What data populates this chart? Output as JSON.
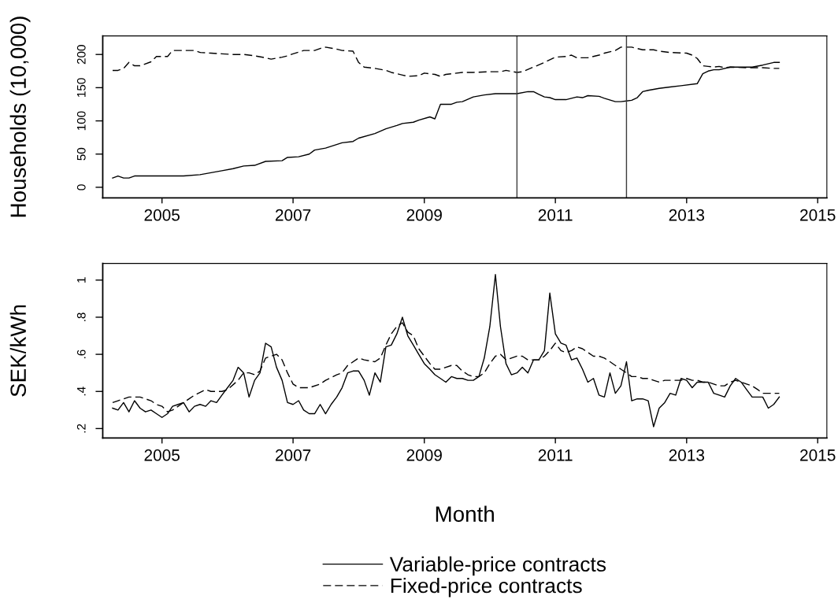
{
  "chart_data": [
    {
      "type": "line",
      "ylabel": "Households (10,000)",
      "xlim": [
        "2004-02-06",
        "2015-02-21"
      ],
      "xticks": [
        {
          "value": "2005-01",
          "label": "2005"
        },
        {
          "value": "2007-01",
          "label": "2007"
        },
        {
          "value": "2009-01",
          "label": "2009"
        },
        {
          "value": "2011-01",
          "label": "2011"
        },
        {
          "value": "2013-01",
          "label": "2013"
        },
        {
          "value": "2015-01",
          "label": "2015"
        }
      ],
      "ylim": [
        -16,
        228
      ],
      "yticks": [
        0,
        50,
        100,
        150,
        200
      ],
      "ref_lines": [
        {
          "axis": "x",
          "value": "2010-06",
          "color": "#3c3c3c"
        },
        {
          "axis": "x",
          "value": "2012-02",
          "color": "#3c3c3c"
        }
      ],
      "series": [
        {
          "color": "#000000",
          "line_style": "solid",
          "x": [
            "2004-04",
            "2004-05",
            "2004-06",
            "2004-07",
            "2004-08",
            "2005-05",
            "2005-08",
            "2005-10",
            "2005-12",
            "2006-02",
            "2006-04",
            "2006-06",
            "2006-08",
            "2006-11",
            "2006-12",
            "2007-02",
            "2007-04",
            "2007-05",
            "2007-07",
            "2007-10",
            "2007-12",
            "2008-01",
            "2008-04",
            "2008-06",
            "2008-08",
            "2008-09",
            "2008-11",
            "2008-12",
            "2009-02",
            "2009-03",
            "2009-04",
            "2009-06",
            "2009-07",
            "2009-08",
            "2009-10",
            "2009-12",
            "2010-02",
            "2010-06",
            "2010-08",
            "2010-09",
            "2010-10",
            "2010-11",
            "2010-12",
            "2011-01",
            "2011-03",
            "2011-05",
            "2011-06",
            "2011-07",
            "2011-09",
            "2011-10",
            "2011-12",
            "2012-01",
            "2012-02",
            "2012-03",
            "2012-04",
            "2012-05",
            "2012-06",
            "2012-08",
            "2012-10",
            "2012-12",
            "2013-03",
            "2013-04",
            "2013-05",
            "2013-06",
            "2013-07",
            "2013-09",
            "2013-10",
            "2014-01",
            "2014-03",
            "2014-05",
            "2014-06"
          ],
          "values": [
            14,
            17,
            14,
            14,
            17,
            17,
            19,
            22,
            25,
            28,
            32,
            33,
            39,
            40,
            45,
            46,
            50,
            56,
            59,
            67,
            69,
            74,
            81,
            88,
            93,
            96,
            98,
            101,
            106,
            103,
            125,
            125,
            128,
            129,
            136,
            139,
            141,
            141,
            144,
            144,
            140,
            136,
            135,
            132,
            132,
            136,
            135,
            138,
            137,
            134,
            129,
            129,
            130,
            131,
            135,
            144,
            146,
            149,
            151,
            153,
            156,
            171,
            175,
            177,
            177,
            181,
            181,
            181,
            184,
            188,
            188
          ]
        },
        {
          "color": "#000000",
          "line_style": "dashed",
          "x": [
            "2004-04",
            "2004-05",
            "2004-06",
            "2004-07",
            "2004-08",
            "2004-09",
            "2004-11",
            "2004-12",
            "2005-02",
            "2005-03",
            "2005-07",
            "2005-08",
            "2005-10",
            "2005-12",
            "2006-02",
            "2006-04",
            "2006-06",
            "2006-08",
            "2006-09",
            "2006-11",
            "2006-12",
            "2007-01",
            "2007-03",
            "2007-05",
            "2007-06",
            "2007-07",
            "2007-09",
            "2007-10",
            "2007-12",
            "2008-01",
            "2008-02",
            "2008-04",
            "2008-06",
            "2008-07",
            "2008-09",
            "2008-10",
            "2008-12",
            "2009-01",
            "2009-03",
            "2009-04",
            "2009-05",
            "2009-08",
            "2009-10",
            "2010-01",
            "2010-03",
            "2010-04",
            "2010-06",
            "2010-07",
            "2010-09",
            "2010-11",
            "2011-01",
            "2011-03",
            "2011-04",
            "2011-05",
            "2011-07",
            "2011-09",
            "2011-10",
            "2011-12",
            "2012-01",
            "2012-03",
            "2012-05",
            "2012-07",
            "2012-08",
            "2012-10",
            "2013-01",
            "2013-02",
            "2013-03",
            "2013-04",
            "2013-05",
            "2013-06",
            "2013-07",
            "2013-08",
            "2013-09",
            "2013-12",
            "2014-03",
            "2014-05",
            "2014-06"
          ],
          "values": [
            176,
            176,
            179,
            188,
            183,
            183,
            189,
            197,
            197,
            206,
            206,
            203,
            202,
            201,
            200,
            200,
            198,
            195,
            193,
            196,
            198,
            201,
            206,
            206,
            209,
            211,
            208,
            206,
            205,
            188,
            181,
            179,
            176,
            173,
            169,
            167,
            168,
            172,
            170,
            167,
            170,
            173,
            173,
            174,
            174,
            176,
            173,
            174,
            181,
            188,
            196,
            197,
            199,
            195,
            195,
            199,
            202,
            206,
            211,
            211,
            207,
            207,
            205,
            203,
            202,
            199,
            194,
            183,
            182,
            181,
            182,
            180,
            181,
            180,
            180,
            179,
            179
          ]
        }
      ]
    },
    {
      "type": "line",
      "ylabel": "SEK/kWh",
      "xlabel": "Month",
      "legend": "bottom",
      "xlim": [
        "2004-02-06",
        "2015-02-21"
      ],
      "xticks": [
        {
          "value": "2005-01",
          "label": "2005"
        },
        {
          "value": "2007-01",
          "label": "2007"
        },
        {
          "value": "2009-01",
          "label": "2009"
        },
        {
          "value": "2011-01",
          "label": "2011"
        },
        {
          "value": "2013-01",
          "label": "2013"
        },
        {
          "value": "2015-01",
          "label": "2015"
        }
      ],
      "ylim": [
        0.149,
        1.09
      ],
      "yticks": [
        {
          "value": 0.2,
          "label": ".2"
        },
        {
          "value": 0.4,
          "label": ".4"
        },
        {
          "value": 0.6,
          "label": ".6"
        },
        {
          "value": 0.8,
          "label": ".8"
        },
        1
      ],
      "x": [
        "2004-04",
        "2004-05",
        "2004-06",
        "2004-07",
        "2004-08",
        "2004-09",
        "2004-10",
        "2004-11",
        "2004-12",
        "2005-01",
        "2005-02",
        "2005-03",
        "2005-04",
        "2005-05",
        "2005-06",
        "2005-07",
        "2005-08",
        "2005-09",
        "2005-10",
        "2005-11",
        "2005-12",
        "2006-01",
        "2006-02",
        "2006-03",
        "2006-04",
        "2006-05",
        "2006-06",
        "2006-07",
        "2006-08",
        "2006-09",
        "2006-10",
        "2006-11",
        "2006-12",
        "2007-01",
        "2007-02",
        "2007-03",
        "2007-04",
        "2007-05",
        "2007-06",
        "2007-07",
        "2007-08",
        "2007-09",
        "2007-10",
        "2007-11",
        "2007-12",
        "2008-01",
        "2008-02",
        "2008-03",
        "2008-04",
        "2008-05",
        "2008-06",
        "2008-07",
        "2008-08",
        "2008-09",
        "2008-10",
        "2008-11",
        "2008-12",
        "2009-01",
        "2009-02",
        "2009-03",
        "2009-04",
        "2009-05",
        "2009-06",
        "2009-07",
        "2009-08",
        "2009-09",
        "2009-10",
        "2009-11",
        "2009-12",
        "2010-01",
        "2010-02",
        "2010-03",
        "2010-04",
        "2010-05",
        "2010-06",
        "2010-07",
        "2010-08",
        "2010-09",
        "2010-10",
        "2010-11",
        "2010-12",
        "2011-01",
        "2011-02",
        "2011-03",
        "2011-04",
        "2011-05",
        "2011-06",
        "2011-07",
        "2011-08",
        "2011-09",
        "2011-10",
        "2011-11",
        "2011-12",
        "2012-01",
        "2012-02",
        "2012-03",
        "2012-04",
        "2012-05",
        "2012-06",
        "2012-07",
        "2012-08",
        "2012-09",
        "2012-10",
        "2012-11",
        "2012-12",
        "2013-01",
        "2013-02",
        "2013-03",
        "2013-04",
        "2013-05",
        "2013-06",
        "2013-07",
        "2013-08",
        "2013-09",
        "2013-10",
        "2013-11",
        "2013-12",
        "2014-01",
        "2014-02",
        "2014-03",
        "2014-04",
        "2014-05",
        "2014-06"
      ],
      "series": [
        {
          "name": "Variable-price contracts",
          "color": "#000000",
          "line_style": "solid",
          "values": [
            0.31,
            0.3,
            0.34,
            0.29,
            0.35,
            0.31,
            0.29,
            0.3,
            0.28,
            0.26,
            0.28,
            0.32,
            0.33,
            0.34,
            0.29,
            0.32,
            0.33,
            0.32,
            0.35,
            0.34,
            0.38,
            0.42,
            0.46,
            0.53,
            0.5,
            0.37,
            0.46,
            0.5,
            0.66,
            0.64,
            0.53,
            0.46,
            0.34,
            0.33,
            0.35,
            0.3,
            0.28,
            0.28,
            0.33,
            0.28,
            0.33,
            0.37,
            0.42,
            0.5,
            0.51,
            0.51,
            0.46,
            0.38,
            0.5,
            0.45,
            0.64,
            0.65,
            0.71,
            0.8,
            0.7,
            0.65,
            0.6,
            0.55,
            0.52,
            0.49,
            0.47,
            0.45,
            0.48,
            0.47,
            0.47,
            0.46,
            0.46,
            0.48,
            0.58,
            0.75,
            1.03,
            0.75,
            0.55,
            0.49,
            0.5,
            0.53,
            0.5,
            0.57,
            0.57,
            0.62,
            0.93,
            0.71,
            0.66,
            0.65,
            0.57,
            0.58,
            0.52,
            0.45,
            0.47,
            0.38,
            0.37,
            0.5,
            0.39,
            0.43,
            0.56,
            0.35,
            0.36,
            0.36,
            0.35,
            0.21,
            0.31,
            0.34,
            0.39,
            0.38,
            0.47,
            0.46,
            0.42,
            0.45,
            0.45,
            0.45,
            0.39,
            0.38,
            0.37,
            0.43,
            0.47,
            0.45,
            0.41,
            0.37,
            0.37,
            0.37,
            0.31,
            0.33,
            0.37
          ]
        },
        {
          "name": "Fixed-price contracts",
          "color": "#000000",
          "line_style": "dashed",
          "x": [
            "2004-04",
            "2004-05",
            "2004-06",
            "2004-07",
            "2004-08",
            "2004-09",
            "2004-10",
            "2004-11",
            "2004-12",
            "2005-01",
            "2005-02",
            "2005-03",
            "2005-05",
            "2005-06",
            "2005-07",
            "2005-09",
            "2005-10",
            "2005-12",
            "2006-01",
            "2006-03",
            "2006-04",
            "2006-05",
            "2006-06",
            "2006-07",
            "2006-08",
            "2006-10",
            "2006-11",
            "2006-12",
            "2007-01",
            "2007-02",
            "2007-04",
            "2007-06",
            "2007-07",
            "2007-09",
            "2007-10",
            "2007-11",
            "2008-01",
            "2008-02",
            "2008-04",
            "2008-05",
            "2008-06",
            "2008-07",
            "2008-08",
            "2008-09",
            "2008-10",
            "2008-11",
            "2008-12",
            "2009-01",
            "2009-02",
            "2009-03",
            "2009-04",
            "2009-06",
            "2009-07",
            "2009-08",
            "2009-09",
            "2009-10",
            "2009-11",
            "2009-12",
            "2010-01",
            "2010-02",
            "2010-03",
            "2010-04",
            "2010-05",
            "2010-06",
            "2010-07",
            "2010-08",
            "2010-09",
            "2010-10",
            "2010-11",
            "2010-12",
            "2011-01",
            "2011-02",
            "2011-03",
            "2011-04",
            "2011-05",
            "2011-06",
            "2011-07",
            "2011-08",
            "2011-09",
            "2011-10",
            "2011-11",
            "2011-12",
            "2012-01",
            "2012-02",
            "2012-03",
            "2012-04",
            "2012-05",
            "2012-06",
            "2012-07",
            "2012-08",
            "2012-09",
            "2012-10",
            "2012-11",
            "2012-12",
            "2013-01",
            "2013-02",
            "2013-03",
            "2013-04",
            "2013-05",
            "2013-06",
            "2013-07",
            "2013-08",
            "2013-09",
            "2013-10",
            "2013-11",
            "2013-12",
            "2014-01",
            "2014-02",
            "2014-03",
            "2014-04",
            "2014-05",
            "2014-06"
          ],
          "values": [
            0.34,
            0.35,
            0.36,
            0.37,
            0.37,
            0.37,
            0.36,
            0.35,
            0.33,
            0.32,
            0.29,
            0.3,
            0.34,
            0.36,
            0.38,
            0.41,
            0.4,
            0.4,
            0.41,
            0.46,
            0.5,
            0.5,
            0.49,
            0.51,
            0.58,
            0.6,
            0.57,
            0.5,
            0.44,
            0.42,
            0.42,
            0.44,
            0.46,
            0.49,
            0.5,
            0.54,
            0.58,
            0.57,
            0.56,
            0.58,
            0.65,
            0.71,
            0.75,
            0.77,
            0.72,
            0.7,
            0.63,
            0.59,
            0.55,
            0.52,
            0.52,
            0.54,
            0.54,
            0.51,
            0.49,
            0.48,
            0.48,
            0.5,
            0.55,
            0.59,
            0.6,
            0.57,
            0.58,
            0.59,
            0.59,
            0.57,
            0.57,
            0.57,
            0.59,
            0.62,
            0.66,
            0.62,
            0.61,
            0.62,
            0.64,
            0.63,
            0.61,
            0.59,
            0.59,
            0.58,
            0.56,
            0.54,
            0.52,
            0.5,
            0.48,
            0.48,
            0.47,
            0.47,
            0.46,
            0.45,
            0.46,
            0.46,
            0.46,
            0.46,
            0.47,
            0.46,
            0.46,
            0.45,
            0.45,
            0.44,
            0.43,
            0.43,
            0.45,
            0.46,
            0.45,
            0.44,
            0.43,
            0.41,
            0.39,
            0.39,
            0.39,
            0.39
          ]
        }
      ]
    }
  ]
}
